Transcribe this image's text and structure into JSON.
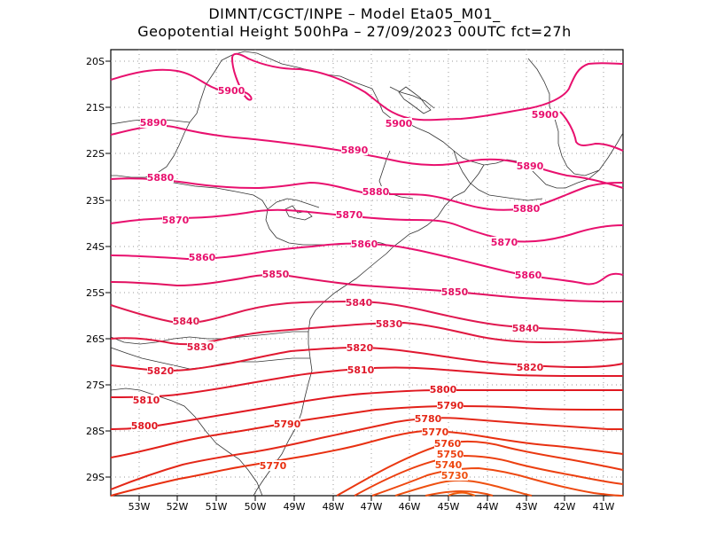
{
  "header": {
    "line1": "DIMNT/CGCT/INPE –   Model Eta05_M01_",
    "line2": "Geopotential Height 500hPa –   27/09/2023 00UTC fct=27h"
  },
  "axes": {
    "lat_labels": [
      "20S",
      "21S",
      "22S",
      "23S",
      "24S",
      "25S",
      "26S",
      "27S",
      "28S",
      "29S"
    ],
    "lon_labels": [
      "53W",
      "52W",
      "51W",
      "50W",
      "49W",
      "48W",
      "47W",
      "46W",
      "45W",
      "44W",
      "43W",
      "42W",
      "41W"
    ]
  },
  "colors": {
    "pink": "#e8106e",
    "magenta": "#e0145a",
    "red": "#e01818",
    "orange_red": "#e83010",
    "orange": "#ee4c08",
    "coast": "#333333"
  },
  "contours": [
    {
      "value": "5900",
      "label_positions": [
        "5900",
        "5900"
      ]
    },
    {
      "value": "5890"
    },
    {
      "value": "5880"
    },
    {
      "value": "5870"
    },
    {
      "value": "5860"
    },
    {
      "value": "5850"
    },
    {
      "value": "5840"
    },
    {
      "value": "5830"
    },
    {
      "value": "5820"
    },
    {
      "value": "5810"
    },
    {
      "value": "5800"
    },
    {
      "value": "5790"
    },
    {
      "value": "5780"
    },
    {
      "value": "5770"
    },
    {
      "value": "5760"
    },
    {
      "value": "5750"
    },
    {
      "value": "5740"
    },
    {
      "value": "5730"
    }
  ]
}
